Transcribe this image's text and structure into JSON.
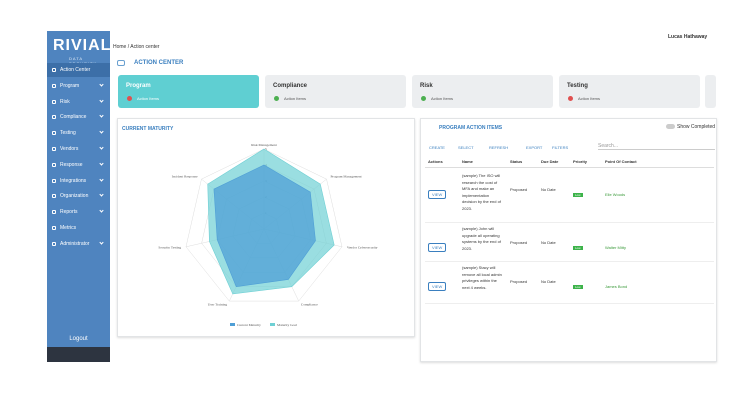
{
  "sidebar": {
    "logo": "RIVIAL",
    "logo_sub": "DATA SECURITY",
    "items": [
      "Action Center",
      "Program",
      "Risk",
      "Compliance",
      "Testing",
      "Vendors",
      "Response",
      "Integrations",
      "Organization",
      "Reports",
      "Metrics",
      "Administrator"
    ],
    "logout": "Logout"
  },
  "header": {
    "breadcrumb": [
      "Home",
      "Action center"
    ],
    "user": "Lucas Hathaway",
    "title": "ACTION CENTER"
  },
  "cards": [
    {
      "title": "Program",
      "status": "Action Items",
      "dot": "#e05050"
    },
    {
      "title": "Compliance",
      "status": "Action Items",
      "dot": "#4caf50"
    },
    {
      "title": "Risk",
      "status": "Action Items",
      "dot": "#4caf50"
    },
    {
      "title": "Testing",
      "status": "Action Items",
      "dot": "#e05050"
    }
  ],
  "maturity": {
    "title": "CURRENT MATURITY"
  },
  "chart_data": {
    "type": "radar",
    "categories": [
      "Risk Management",
      "Program Management",
      "Vendor Cybersecurity",
      "Compliance",
      "User Training",
      "Security Testing",
      "Incident Response"
    ],
    "series": [
      {
        "name": "Current Maturity",
        "color": "#4f9fd6",
        "values": [
          4,
          3.7,
          3.3,
          3.5,
          4,
          3,
          4
        ]
      },
      {
        "name": "Maturity Goal",
        "color": "#6fd0d4",
        "values": [
          5,
          4.5,
          4.5,
          4,
          4.5,
          3.5,
          4.5
        ]
      }
    ],
    "ylim": [
      0,
      5
    ],
    "yticks": [
      1,
      2,
      3,
      4,
      5
    ],
    "grid": true
  },
  "program_items": {
    "title": "PROGRAM ACTION ITEMS",
    "toggle": "Show Completed",
    "toolbar": [
      "CREATE",
      "SELECT",
      "REFRESH",
      "EXPORT",
      "FILTERS"
    ],
    "search": "Search...",
    "columns": [
      "Actions",
      "Name",
      "Status",
      "Due Date",
      "Priority",
      "Point Of Contact"
    ],
    "view": "VIEW",
    "rows": [
      [
        "(sample) The ISO will research the cost of MFA and make an implementation decision by the end of 2023.",
        "Proposed",
        "No Date",
        "Low",
        "Elle Woods"
      ],
      [
        "(sample) John will upgrade all operating systems by the end of 2023.",
        "Proposed",
        "No Date",
        "Low",
        "Walter Mitty"
      ],
      [
        "(sample) Stacy will remove all local admin privileges within the next 4 weeks.",
        "Proposed",
        "No Date",
        "Low",
        "James Bond"
      ]
    ]
  }
}
